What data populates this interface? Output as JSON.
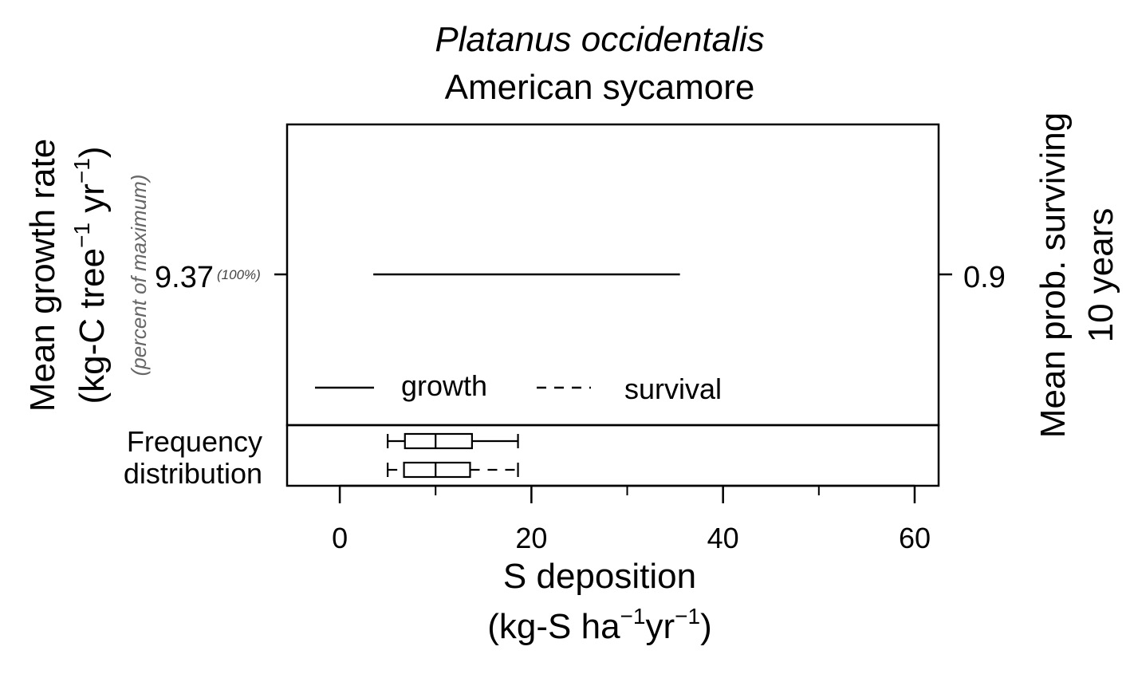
{
  "chart_data": {
    "type": "line",
    "title": "Platanus occidentalis",
    "subtitle": "American sycamore",
    "xlabel": {
      "line1": "S deposition",
      "line2_prefix": "(kg-S ha",
      "line2_sup1": "−1",
      "line2_mid": "yr",
      "line2_sup2": "−1",
      "line2_suffix": ")"
    },
    "ylabel_left": {
      "line1": "Mean growth rate",
      "line2_prefix": "(kg-C tree",
      "line2_sup1": "−1",
      "line2_mid": " yr",
      "line2_sup2": "−1",
      "line2_suffix": ")",
      "note": "(percent of maximum)"
    },
    "ylabel_right": {
      "line1": "Mean prob. surviving",
      "line2": "10 years"
    },
    "xlim": [
      -5.5,
      62.5
    ],
    "x_ticks": [
      0,
      20,
      40,
      60
    ],
    "x_minor_ticks": [
      10,
      30,
      50
    ],
    "x_tick_labels": [
      "0",
      "20",
      "40",
      "60"
    ],
    "left_tick": {
      "label": "9.37",
      "note": "(100%)"
    },
    "right_tick": {
      "label": "0.9"
    },
    "series": [
      {
        "name": "growth",
        "style": "solid",
        "x": [
          3.5,
          35.5
        ],
        "y": [
          9.37,
          9.37
        ]
      },
      {
        "name": "survival",
        "style": "dashed",
        "x": [],
        "y": []
      }
    ],
    "legend": {
      "position": "bottom-left",
      "items": [
        "growth",
        "survival"
      ]
    },
    "distribution": {
      "label_line1": "Frequency",
      "label_line2": "distribution",
      "boxes": [
        {
          "series": "growth",
          "min": 5.0,
          "q1": 6.8,
          "median": 10.0,
          "q3": 13.8,
          "max": 18.6
        },
        {
          "series": "survival",
          "min": 5.0,
          "q1": 6.7,
          "median": 10.0,
          "q3": 13.6,
          "max": 18.6
        }
      ]
    },
    "grid": false
  }
}
